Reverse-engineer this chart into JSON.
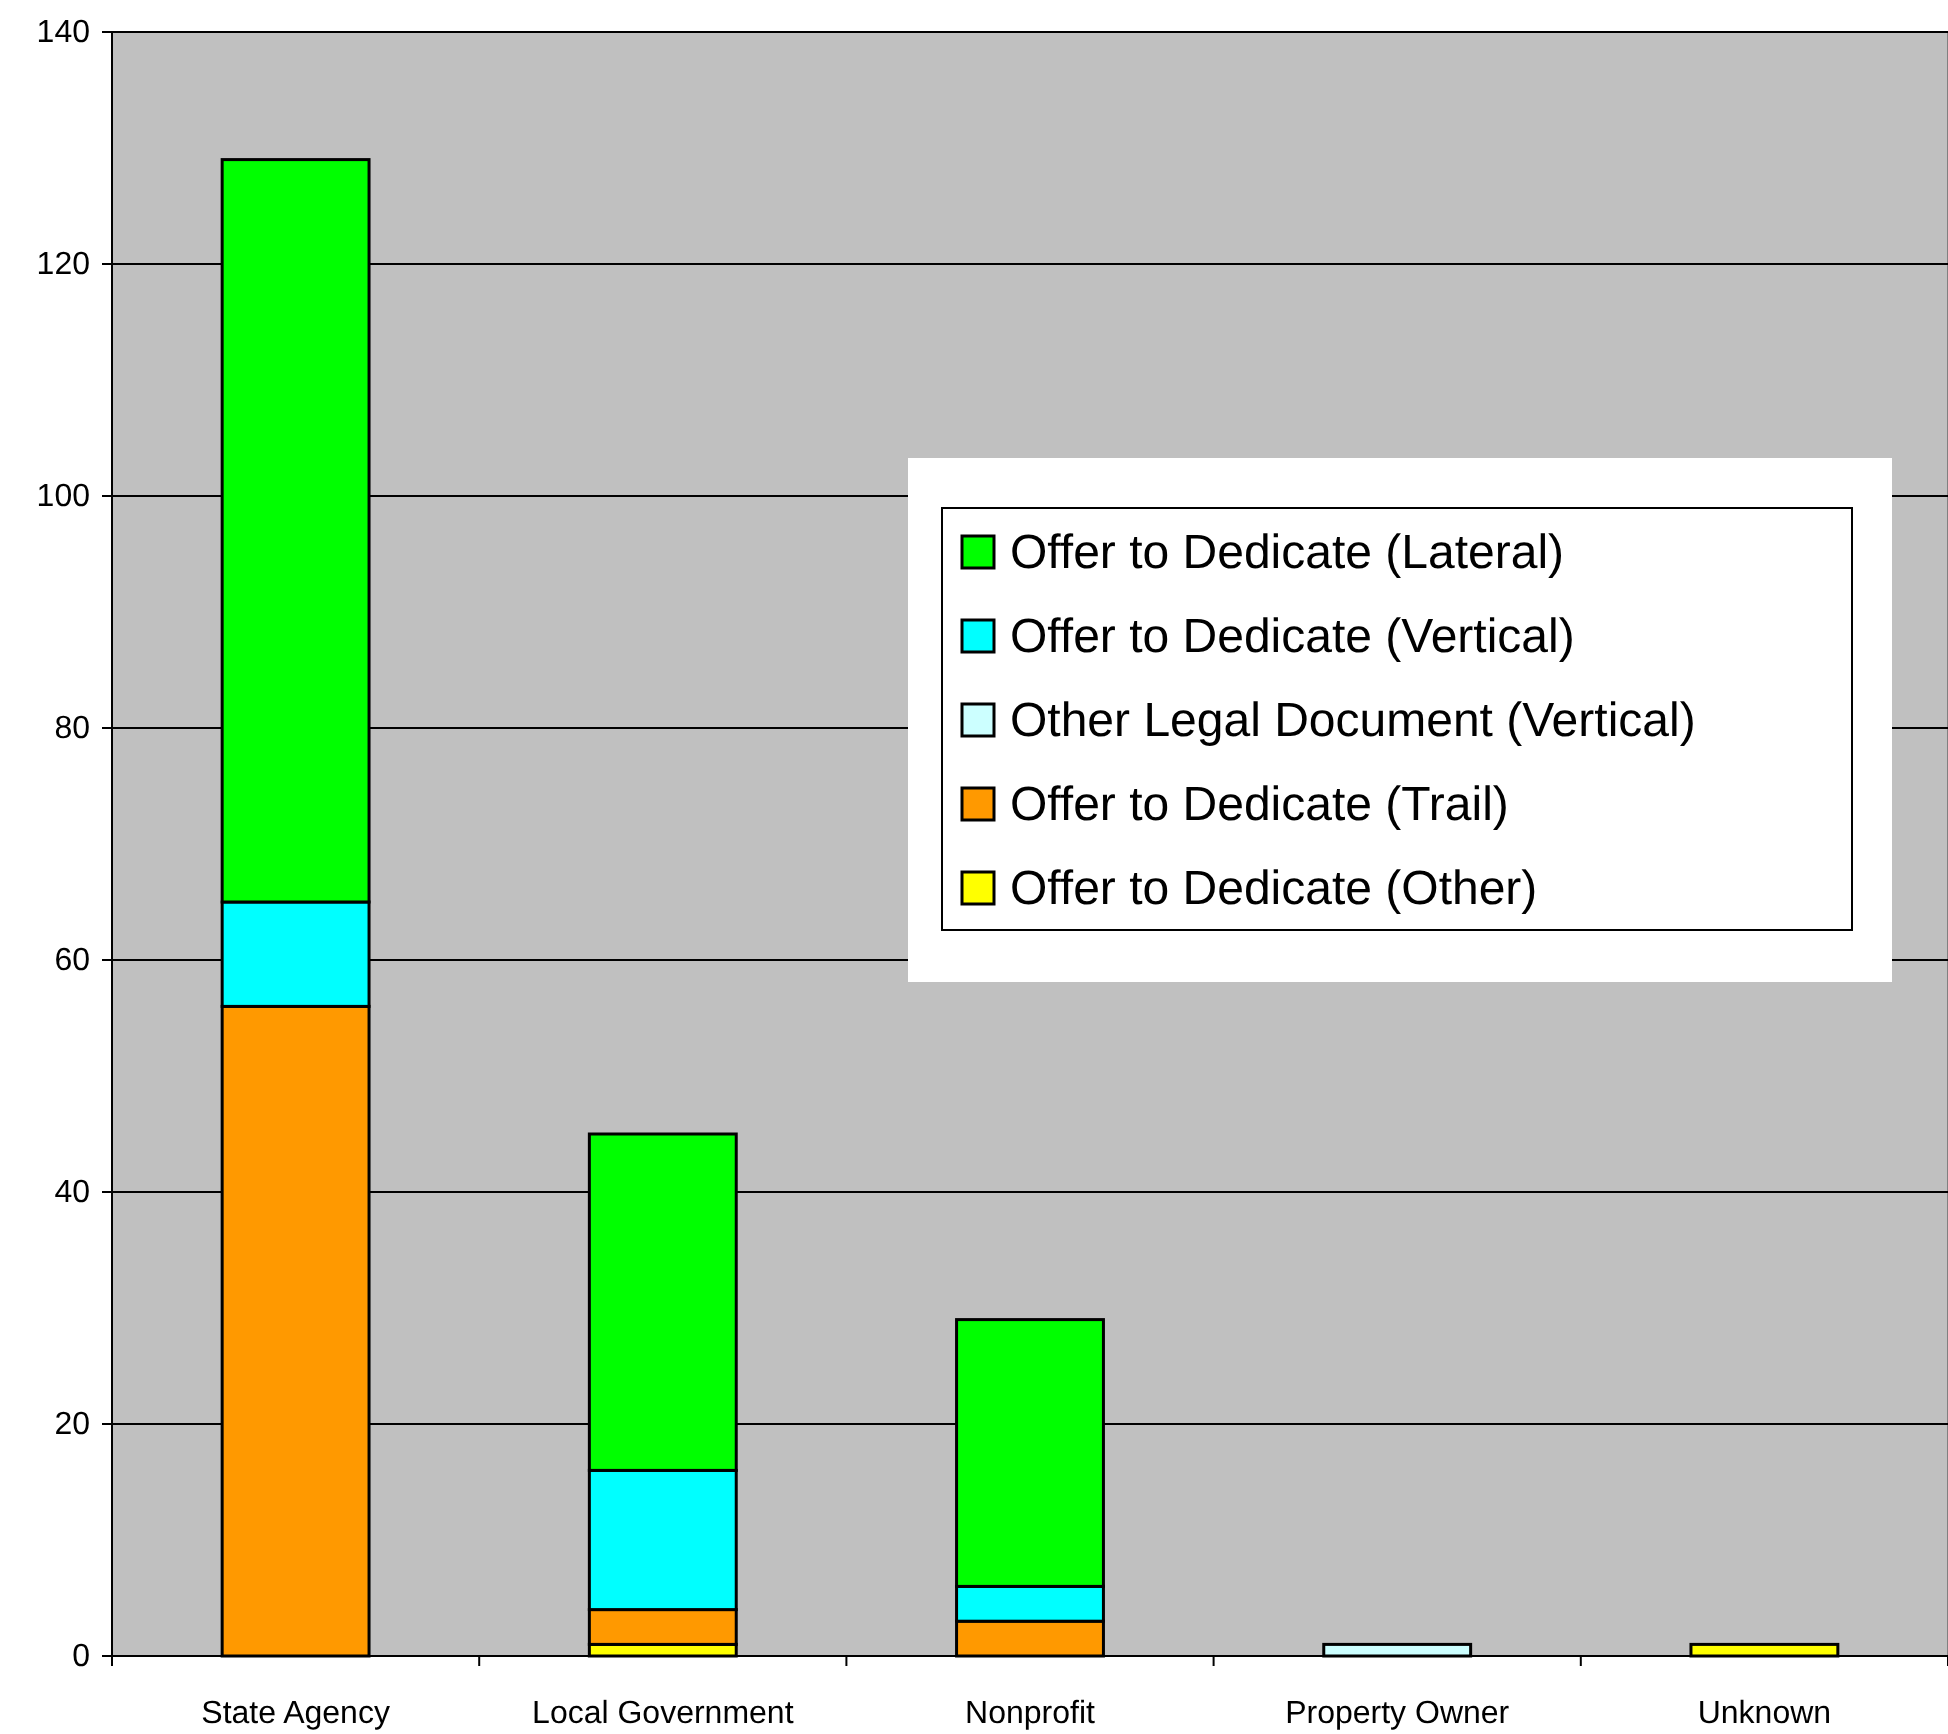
{
  "chart_data": {
    "type": "bar",
    "stacked": true,
    "categories": [
      "State Agency",
      "Local Government",
      "Nonprofit",
      "Property Owner",
      "Unknown"
    ],
    "series": [
      {
        "name": "Offer to Dedicate (Other)",
        "color": "#ffff00",
        "values": [
          0,
          1,
          0,
          0,
          1
        ]
      },
      {
        "name": "Offer to Dedicate (Trail)",
        "color": "#ff9900",
        "values": [
          56,
          3,
          3,
          0,
          0
        ]
      },
      {
        "name": "Other Legal Document (Vertical)",
        "color": "#ccffff",
        "values": [
          0,
          0,
          0,
          1,
          0
        ]
      },
      {
        "name": "Offer to Dedicate (Vertical)",
        "color": "#00ffff",
        "values": [
          9,
          12,
          3,
          0,
          0
        ]
      },
      {
        "name": "Offer to Dedicate (Lateral)",
        "color": "#00ff00",
        "values": [
          64,
          29,
          23,
          0,
          0
        ]
      }
    ],
    "ylim": [
      0,
      140
    ],
    "yticks": [
      0,
      20,
      40,
      60,
      80,
      100,
      120,
      140
    ],
    "grid": "y",
    "legend": "right"
  }
}
